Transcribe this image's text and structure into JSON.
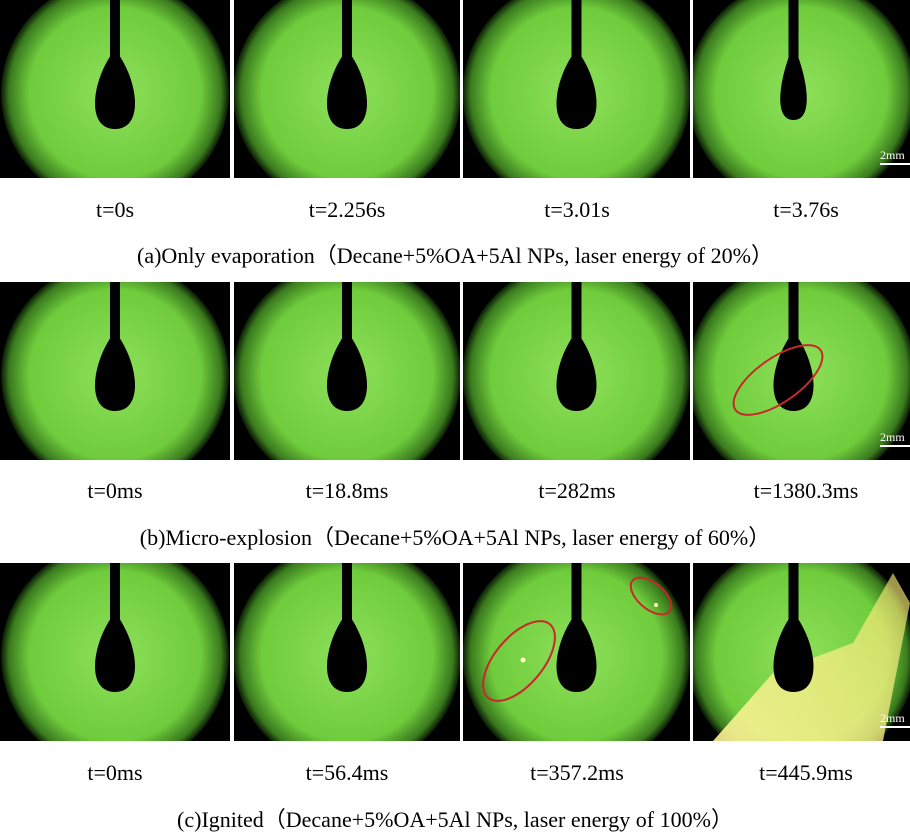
{
  "panels": [
    {
      "caption": "(a)Only evaporation（Decane+5%OA+5Al NPs, laser energy of 20%）",
      "frames": [
        {
          "time": "t=0s"
        },
        {
          "time": "t=2.256s"
        },
        {
          "time": "t=3.01s"
        },
        {
          "time": "t=3.76s",
          "scale_bar": "2mm"
        }
      ]
    },
    {
      "caption": "(b)Micro-explosion（Decane+5%OA+5Al NPs, laser energy of 60%）",
      "frames": [
        {
          "time": "t=0ms"
        },
        {
          "time": "t=18.8ms"
        },
        {
          "time": "t=282ms"
        },
        {
          "time": "t=1380.3ms",
          "scale_bar": "2mm"
        }
      ]
    },
    {
      "caption": "(c)Ignited（Decane+5%OA+5Al NPs, laser energy of 100%）",
      "frames": [
        {
          "time": "t=0ms"
        },
        {
          "time": "t=56.4ms"
        },
        {
          "time": "t=357.2ms"
        },
        {
          "time": "t=445.9ms",
          "scale_bar": "2mm"
        }
      ]
    }
  ]
}
